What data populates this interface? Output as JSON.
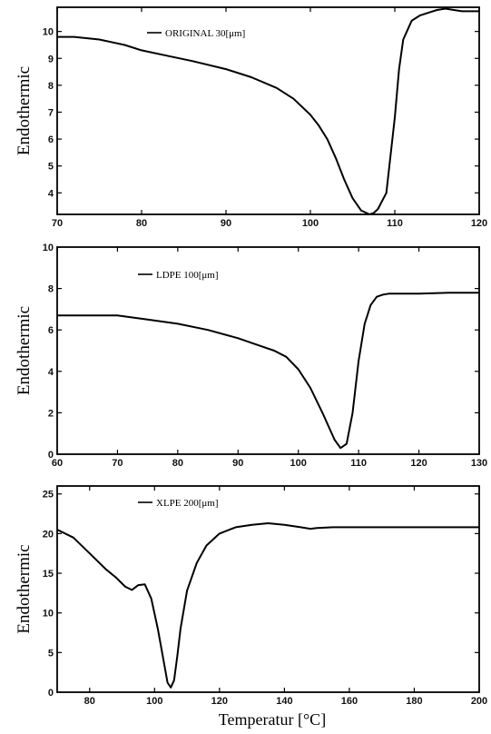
{
  "chart_data": [
    {
      "type": "line",
      "ylabel": "Endothermic",
      "xlabel": "",
      "xlim": [
        70,
        120
      ],
      "ylim": [
        3.2,
        10.9
      ],
      "x_ticks": [
        70,
        80,
        90,
        100,
        110,
        120
      ],
      "y_ticks": [
        4,
        5,
        6,
        7,
        8,
        9,
        10
      ],
      "legend": "top-center",
      "series": [
        {
          "name": "ORIGINAL 30[μm]",
          "x": [
            70,
            72,
            75,
            78,
            80,
            83,
            86,
            90,
            93,
            96,
            98,
            100,
            101,
            102,
            103,
            104,
            105,
            106,
            107,
            107.5,
            108,
            109,
            110,
            110.5,
            111,
            112,
            113,
            114,
            115,
            116,
            117,
            118,
            120
          ],
          "y": [
            9.8,
            9.8,
            9.7,
            9.5,
            9.3,
            9.1,
            8.9,
            8.6,
            8.3,
            7.9,
            7.5,
            6.9,
            6.5,
            6.0,
            5.3,
            4.5,
            3.8,
            3.35,
            3.2,
            3.25,
            3.4,
            4.0,
            6.8,
            8.6,
            9.7,
            10.4,
            10.6,
            10.7,
            10.8,
            10.85,
            10.8,
            10.75,
            10.75
          ]
        }
      ]
    },
    {
      "type": "line",
      "ylabel": "Endothermic",
      "xlabel": "",
      "xlim": [
        60,
        130
      ],
      "ylim": [
        0,
        10
      ],
      "x_ticks": [
        60,
        70,
        80,
        90,
        100,
        110,
        120,
        130
      ],
      "y_ticks": [
        0,
        2,
        4,
        6,
        8,
        10
      ],
      "legend": "top-center",
      "series": [
        {
          "name": "LDPE 100[μm]",
          "x": [
            60,
            65,
            70,
            75,
            80,
            85,
            90,
            93,
            96,
            98,
            100,
            102,
            104,
            106,
            107,
            108,
            109,
            110,
            111,
            112,
            113,
            114,
            115,
            118,
            120,
            125,
            130
          ],
          "y": [
            6.7,
            6.7,
            6.7,
            6.5,
            6.3,
            6.0,
            5.6,
            5.3,
            5.0,
            4.7,
            4.1,
            3.2,
            2.0,
            0.7,
            0.3,
            0.5,
            2.0,
            4.5,
            6.3,
            7.2,
            7.6,
            7.7,
            7.75,
            7.75,
            7.75,
            7.8,
            7.8
          ]
        }
      ]
    },
    {
      "type": "line",
      "ylabel": "Endothermic",
      "xlabel": "Temperatur [°C]",
      "xlim": [
        70,
        200
      ],
      "ylim": [
        0,
        26
      ],
      "x_ticks": [
        80,
        100,
        120,
        140,
        160,
        180,
        200
      ],
      "y_ticks": [
        0,
        5,
        10,
        15,
        20,
        25
      ],
      "legend": "top-center",
      "series": [
        {
          "name": "XLPE 200[μm]",
          "x": [
            70,
            75,
            80,
            85,
            88,
            91,
            93,
            95,
            97,
            99,
            101,
            103,
            104,
            105,
            106,
            107,
            108,
            110,
            113,
            116,
            120,
            125,
            130,
            135,
            140,
            145,
            148,
            150,
            155,
            160,
            170,
            180,
            190,
            200
          ],
          "y": [
            20.5,
            19.5,
            17.5,
            15.5,
            14.5,
            13.3,
            12.9,
            13.5,
            13.6,
            11.8,
            8.0,
            3.5,
            1.2,
            0.6,
            1.5,
            4.5,
            8.0,
            12.8,
            16.3,
            18.5,
            20.0,
            20.8,
            21.1,
            21.3,
            21.1,
            20.8,
            20.6,
            20.7,
            20.8,
            20.8,
            20.8,
            20.8,
            20.8,
            20.8
          ]
        }
      ]
    }
  ]
}
